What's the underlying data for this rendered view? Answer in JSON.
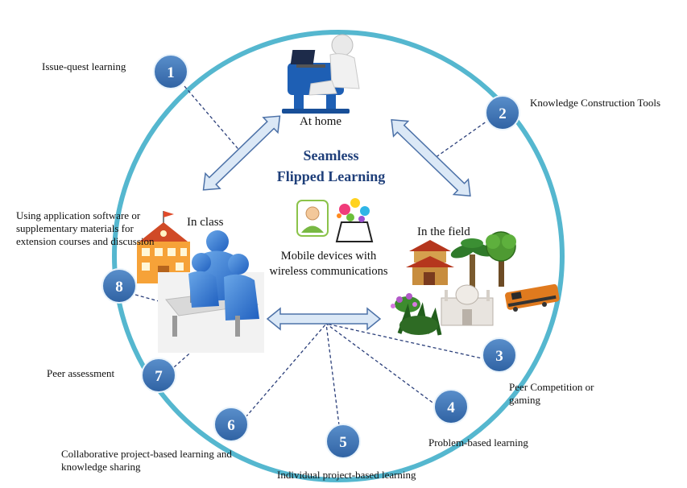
{
  "title": {
    "line1": "Seamless",
    "line2": "Flipped Learning"
  },
  "scenes": {
    "home": "At home",
    "class": "In class",
    "field": "In the field"
  },
  "mobile": {
    "line1": "Mobile devices with",
    "line2": "wireless communications"
  },
  "nodes": [
    {
      "number": "1",
      "label": "Issue-quest learning"
    },
    {
      "number": "2",
      "label": "Knowledge Construction Tools"
    },
    {
      "number": "3",
      "label": "Peer Competition or gaming"
    },
    {
      "number": "4",
      "label": "Problem-based learning"
    },
    {
      "number": "5",
      "label": "Individual project-based learning"
    },
    {
      "number": "6",
      "label": "Collaborative project-based learning and knowledge sharing"
    },
    {
      "number": "7",
      "label": "Peer assessment"
    },
    {
      "number": "8",
      "label": "Using application software or supplementary materials for extension courses and discussion"
    }
  ],
  "colors": {
    "ring": "#55b7cf",
    "node_fill": "#3e74b3",
    "arrow_fill": "#dbe8f6",
    "arrow_stroke": "#4d72a8",
    "connector": "#2b3f7a",
    "title": "#1f3f7a"
  },
  "icons": [
    "laptop-user-icon",
    "school-building-icon",
    "people-at-desk-icon",
    "person-icon",
    "tablet-splash-icon",
    "pagoda-icon",
    "palm-tree-icon",
    "tree-icon",
    "train-icon",
    "taj-mahal-icon",
    "flowers-icon"
  ]
}
